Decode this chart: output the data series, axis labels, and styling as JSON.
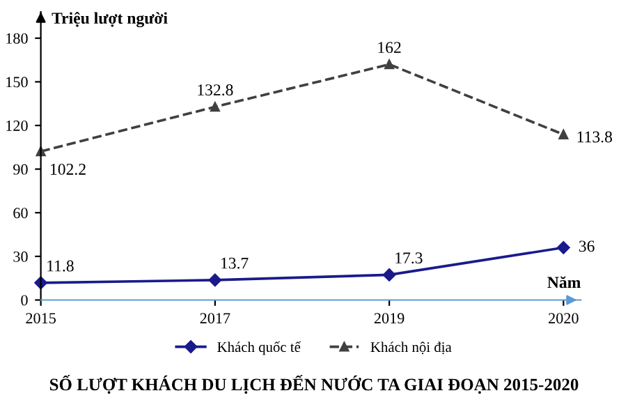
{
  "chart_data": {
    "type": "line",
    "title": "SỐ LƯỢT KHÁCH DU LỊCH ĐẾN NƯỚC TA GIAI ĐOẠN 2015-2020",
    "ylabel": "Triệu lượt người",
    "xlabel": "Năm",
    "categories": [
      "2015",
      "2017",
      "2019",
      "2020"
    ],
    "series": [
      {
        "name": "Khách quốc tế",
        "color": "#1a1a8c",
        "marker": "diamond",
        "line_style": "solid",
        "values": [
          11.8,
          13.7,
          17.3,
          36
        ]
      },
      {
        "name": "Khách nội địa",
        "color": "#404040",
        "marker": "triangle",
        "line_style": "dashed",
        "values": [
          102.2,
          132.8,
          162,
          113.8
        ]
      }
    ],
    "ylim": [
      0,
      198
    ],
    "yticks": [
      0,
      30,
      60,
      90,
      120,
      150,
      180
    ],
    "data_labels": true,
    "grid": false,
    "legend": "bottom"
  }
}
